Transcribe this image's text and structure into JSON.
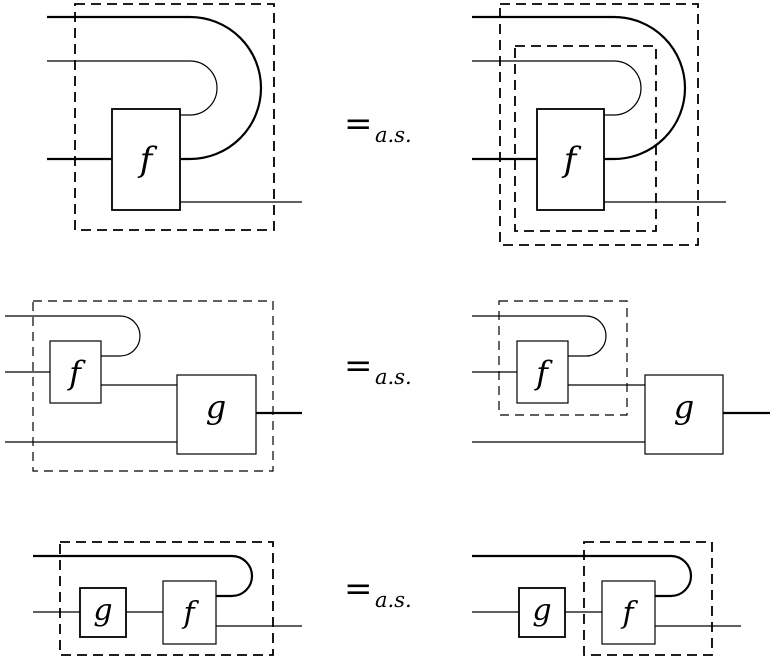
{
  "equations": [
    {
      "left": {
        "boxes": [
          "f"
        ]
      },
      "equals": {
        "symbol": "=",
        "subscript": "a.s."
      },
      "right": {
        "boxes": [
          "f"
        ]
      }
    },
    {
      "left": {
        "boxes": [
          "f",
          "g"
        ]
      },
      "equals": {
        "symbol": "=",
        "subscript": "a.s."
      },
      "right": {
        "boxes": [
          "f",
          "g"
        ]
      }
    },
    {
      "left": {
        "boxes": [
          "g",
          "f"
        ]
      },
      "equals": {
        "symbol": "=",
        "subscript": "a.s."
      },
      "right": {
        "boxes": [
          "g",
          "f"
        ]
      }
    }
  ]
}
